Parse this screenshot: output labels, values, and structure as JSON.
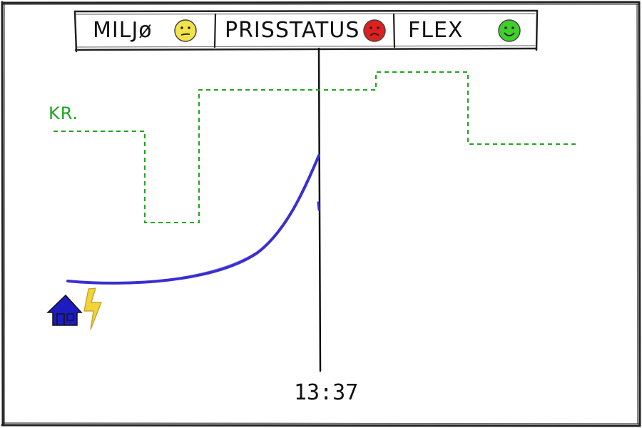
{
  "tabs": [
    {
      "label": "MILJø",
      "mood_icon": "neutral-face-icon",
      "mood_color": "#f2e34a"
    },
    {
      "label": "PRISSTATUS",
      "mood_icon": "sad-face-icon",
      "mood_color": "#e02020"
    },
    {
      "label": "FLEX",
      "mood_icon": "happy-face-icon",
      "mood_color": "#3fcf2a"
    }
  ],
  "price_axis_label": "KR.",
  "current_time": "13:37",
  "icons": {
    "home": "house-icon",
    "power": "lightning-bolt-icon"
  },
  "colors": {
    "price_line": "#1fa51f",
    "consumption_curve": "#3a2fd0",
    "house": "#1c1cc0",
    "bolt": "#f3d23a",
    "ink": "#111111"
  }
}
